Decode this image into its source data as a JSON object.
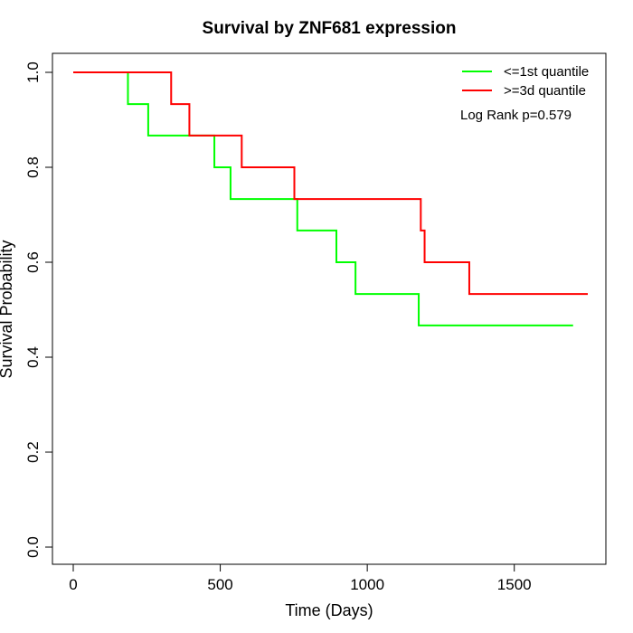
{
  "chart_data": {
    "type": "line",
    "title": "Survival by ZNF681 expression",
    "xlabel": "Time (Days)",
    "ylabel": "Survival Probability",
    "xlim": [
      0,
      1750
    ],
    "ylim": [
      0,
      1.0
    ],
    "x_ticks": [
      "0",
      "500",
      "1000",
      "1500"
    ],
    "y_ticks": [
      "0.0",
      "0.2",
      "0.4",
      "0.6",
      "0.8",
      "1.0"
    ],
    "legend_position": "top-right",
    "annotation": "Log Rank p=0.579",
    "series": [
      {
        "name": "<=1st quantile",
        "color": "#00ff00",
        "steps": [
          [
            0,
            1.0
          ],
          [
            186,
            0.933
          ],
          [
            255,
            0.867
          ],
          [
            480,
            0.8
          ],
          [
            535,
            0.733
          ],
          [
            762,
            0.667
          ],
          [
            895,
            0.6
          ],
          [
            960,
            0.533
          ],
          [
            1175,
            0.467
          ],
          [
            1700,
            0.467
          ]
        ]
      },
      {
        "name": ">=3d quantile",
        "color": "#ff0000",
        "steps": [
          [
            0,
            1.0
          ],
          [
            333,
            0.933
          ],
          [
            395,
            0.867
          ],
          [
            573,
            0.8
          ],
          [
            752,
            0.733
          ],
          [
            1182,
            0.667
          ],
          [
            1195,
            0.6
          ],
          [
            1347,
            0.533
          ],
          [
            1750,
            0.533
          ]
        ]
      }
    ]
  }
}
